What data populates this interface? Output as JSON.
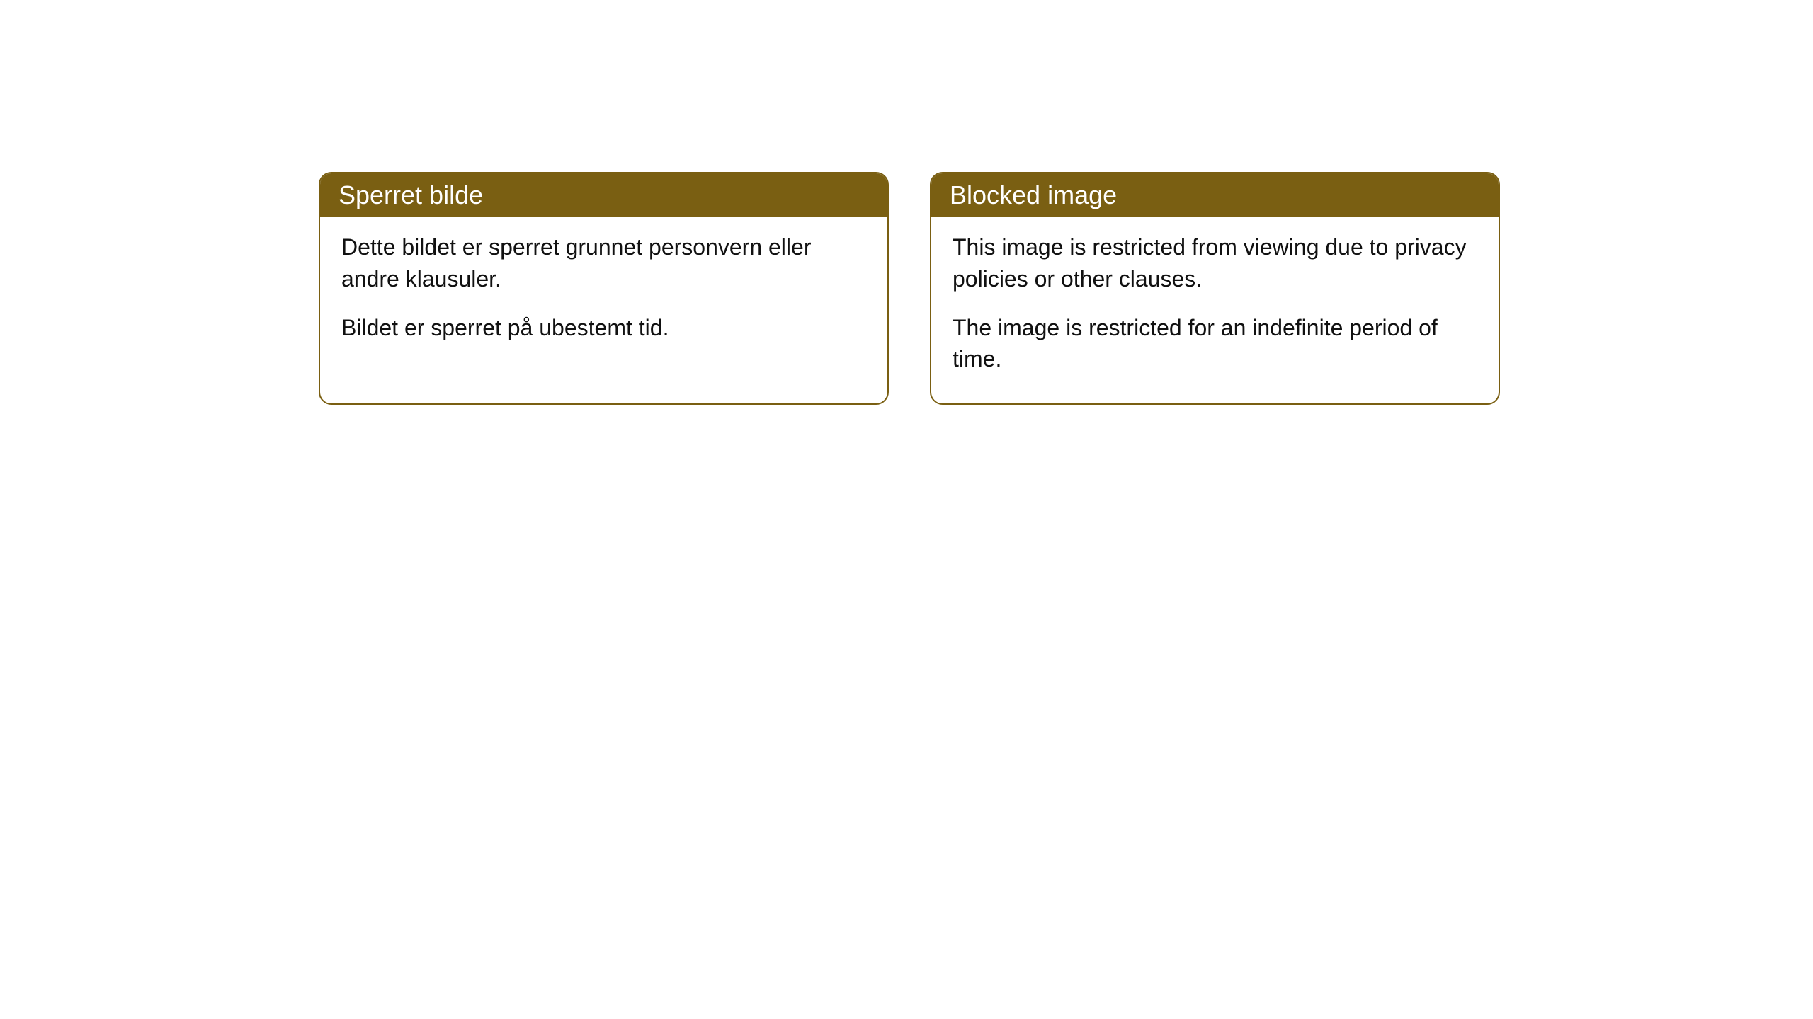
{
  "cards": [
    {
      "title": "Sperret bilde",
      "paragraph1": "Dette bildet er sperret grunnet personvern eller andre klausuler.",
      "paragraph2": "Bildet er sperret på ubestemt tid."
    },
    {
      "title": "Blocked image",
      "paragraph1": "This image is restricted from viewing due to privacy policies or other clauses.",
      "paragraph2": "The image is restricted for an indefinite period of time."
    }
  ],
  "styling": {
    "header_background": "#7a5f12",
    "header_text_color": "#ffffff",
    "border_color": "#7a5f12",
    "body_background": "#ffffff",
    "body_text_color": "#111111",
    "border_radius": 18,
    "header_fontsize": 36,
    "body_fontsize": 32
  }
}
